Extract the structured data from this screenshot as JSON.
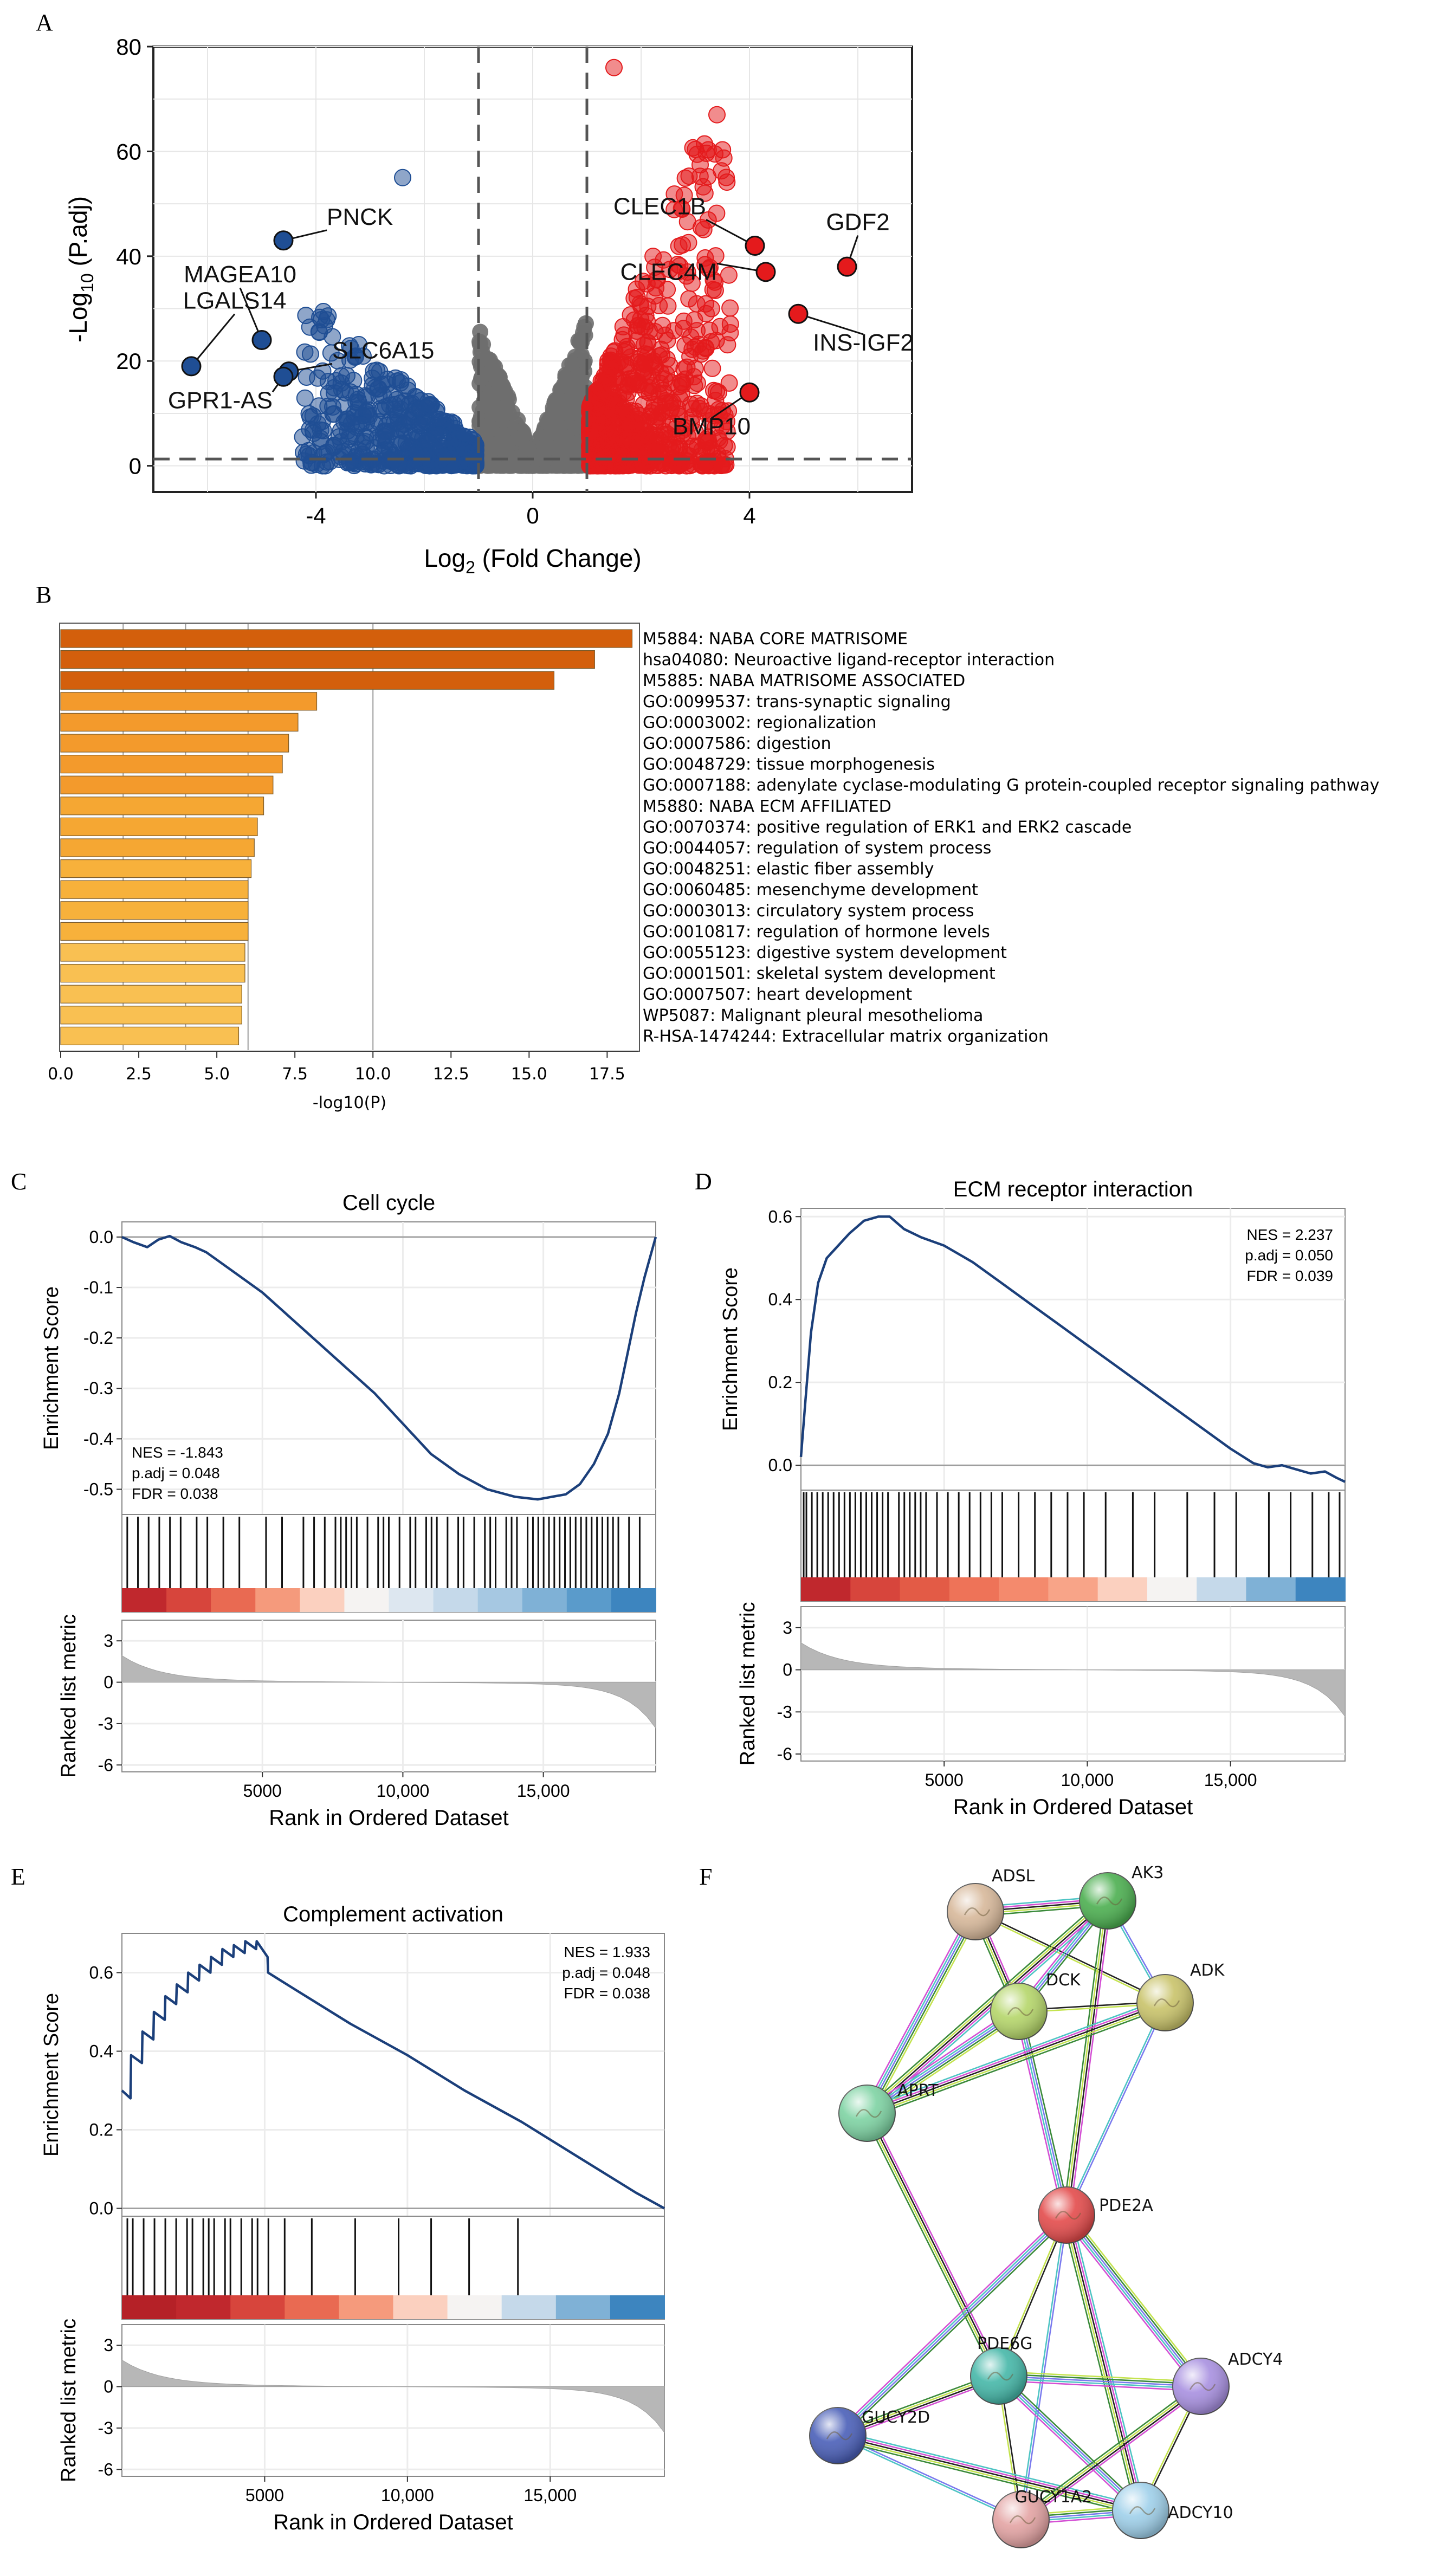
{
  "chart_data": [
    {
      "panel": "A",
      "type": "scatter",
      "xlabel": "Log",
      "xlabel_sub": "2",
      "xlabel_tail": " (Fold Change)",
      "ylabel": "-Log",
      "ylabel_sub": "10",
      "ylabel_tail": " (P.adj)",
      "xlim": [
        -7,
        7
      ],
      "ylim": [
        -5,
        80
      ],
      "xticks": [
        "-4",
        "0",
        "4"
      ],
      "xtick_values": [
        -4,
        0,
        4
      ],
      "yticks": [
        "0",
        "20",
        "40",
        "60",
        "80"
      ],
      "ytick_values": [
        0,
        20,
        40,
        60,
        80
      ],
      "thresholds": {
        "x": [
          -1,
          1
        ],
        "y": 1.3
      },
      "colors": {
        "down": "#1f4e94",
        "up": "#e41a1c",
        "ns": "#6e6e6e"
      },
      "labeled_genes": [
        {
          "gene": "PNCK",
          "x": -4.6,
          "y": 43,
          "group": "down"
        },
        {
          "gene": "MAGEA10",
          "x": -5.0,
          "y": 24,
          "group": "down"
        },
        {
          "gene": "LGALS14",
          "x": -6.3,
          "y": 19,
          "group": "down"
        },
        {
          "gene": "SLC6A15",
          "x": -4.5,
          "y": 18,
          "group": "down"
        },
        {
          "gene": "GPR1-AS",
          "x": -4.6,
          "y": 17,
          "group": "down"
        },
        {
          "gene": "CLEC1B",
          "x": 4.1,
          "y": 42,
          "group": "up"
        },
        {
          "gene": "GDF2",
          "x": 5.8,
          "y": 38,
          "group": "up"
        },
        {
          "gene": "CLEC4M",
          "x": 4.3,
          "y": 37,
          "group": "up"
        },
        {
          "gene": "INS-IGF2",
          "x": 4.9,
          "y": 29,
          "group": "up"
        },
        {
          "gene": "BMP10",
          "x": 4.0,
          "y": 14,
          "group": "up"
        }
      ],
      "notable_points": [
        {
          "x": -2.4,
          "y": 55,
          "group": "down"
        },
        {
          "x": 1.5,
          "y": 76,
          "group": "up"
        },
        {
          "x": 3.4,
          "y": 67,
          "group": "up"
        }
      ]
    },
    {
      "panel": "B",
      "type": "bar",
      "orientation": "horizontal",
      "xlabel": "-log10(P)",
      "xlim": [
        0,
        18.5
      ],
      "xticks": [
        "0.0",
        "2.5",
        "5.0",
        "7.5",
        "10.0",
        "12.5",
        "15.0",
        "17.5"
      ],
      "xtick_values": [
        0,
        2.5,
        5,
        7.5,
        10,
        12.5,
        15,
        17.5
      ],
      "gridlines": [
        2,
        4,
        6,
        10
      ],
      "categories": [
        "M5884: NABA CORE MATRISOME",
        "hsa04080: Neuroactive ligand-receptor interaction",
        "M5885: NABA MATRISOME ASSOCIATED",
        "GO:0099537: trans-synaptic signaling",
        "GO:0003002: regionalization",
        "GO:0007586: digestion",
        "GO:0048729: tissue morphogenesis",
        "GO:0007188: adenylate cyclase-modulating G protein-coupled receptor signaling pathway",
        "M5880: NABA ECM AFFILIATED",
        "GO:0070374: positive regulation of ERK1 and ERK2 cascade",
        "GO:0044057: regulation of system process",
        "GO:0048251: elastic fiber assembly",
        "GO:0060485: mesenchyme development",
        "GO:0003013: circulatory system process",
        "GO:0010817: regulation of hormone levels",
        "GO:0055123: digestive system development",
        "GO:0001501: skeletal system development",
        "GO:0007507: heart development",
        "WP5087: Malignant pleural mesothelioma",
        "R-HSA-1474244: Extracellular matrix organization"
      ],
      "values": [
        18.3,
        17.1,
        15.8,
        8.2,
        7.6,
        7.3,
        7.1,
        6.8,
        6.5,
        6.3,
        6.2,
        6.1,
        6.0,
        6.0,
        6.0,
        5.9,
        5.9,
        5.8,
        5.8,
        5.7
      ],
      "colors": [
        "#d35f0c",
        "#d35f0c",
        "#d35f0c",
        "#f39a2c",
        "#f39a2c",
        "#f39a2c",
        "#f39a2c",
        "#f39a2c",
        "#f5a733",
        "#f5a733",
        "#f5a733",
        "#f7b13b",
        "#f7b13b",
        "#f7b13b",
        "#f7b13b",
        "#f9c052",
        "#f9c052",
        "#f9c052",
        "#f9c052",
        "#f9c052"
      ]
    },
    {
      "panel": "C",
      "type": "line",
      "title": "Cell cycle",
      "ylabel": "Enrichment Score",
      "ylabel2": "Ranked list metric",
      "xlabel": "Rank in Ordered Dataset",
      "xlim": [
        0,
        19000
      ],
      "ylim": [
        -0.55,
        0.03
      ],
      "xticks": [
        "5000",
        "10,000",
        "15,000"
      ],
      "xtick_values": [
        5000,
        10000,
        15000
      ],
      "yticks": [
        "0.0",
        "-0.1",
        "-0.2",
        "-0.3",
        "-0.4",
        "-0.5"
      ],
      "ytick_values": [
        0,
        -0.1,
        -0.2,
        -0.3,
        -0.4,
        -0.5
      ],
      "metric_ticks": [
        "3",
        "0",
        "-3",
        "-6"
      ],
      "metric_values": [
        3,
        0,
        -3,
        -6
      ],
      "stats": [
        "NES = -1.843",
        "p.adj = 0.048",
        "FDR = 0.038"
      ],
      "curve": {
        "x": [
          0,
          400,
          900,
          1300,
          1700,
          2100,
          2600,
          3000,
          4000,
          5000,
          6000,
          7000,
          8000,
          9000,
          10000,
          11000,
          12000,
          13000,
          14000,
          14800,
          15300,
          15800,
          16300,
          16800,
          17300,
          17700,
          18000,
          18300,
          18600,
          18800,
          19000
        ],
        "y": [
          0,
          -0.01,
          -0.02,
          -0.005,
          0.002,
          -0.01,
          -0.02,
          -0.03,
          -0.07,
          -0.11,
          -0.16,
          -0.21,
          -0.26,
          -0.31,
          -0.37,
          -0.43,
          -0.47,
          -0.5,
          -0.515,
          -0.52,
          -0.515,
          -0.51,
          -0.49,
          -0.45,
          -0.39,
          -0.31,
          -0.23,
          -0.15,
          -0.08,
          -0.04,
          0.0
        ]
      },
      "hit_rank_fractions": [
        0.01,
        0.03,
        0.05,
        0.07,
        0.09,
        0.11,
        0.14,
        0.16,
        0.19,
        0.22,
        0.27,
        0.3,
        0.34,
        0.36,
        0.38,
        0.4,
        0.41,
        0.42,
        0.43,
        0.44,
        0.46,
        0.48,
        0.49,
        0.5,
        0.52,
        0.54,
        0.55,
        0.57,
        0.58,
        0.59,
        0.61,
        0.63,
        0.64,
        0.66,
        0.68,
        0.69,
        0.7,
        0.72,
        0.73,
        0.74,
        0.76,
        0.77,
        0.78,
        0.79,
        0.8,
        0.81,
        0.82,
        0.83,
        0.84,
        0.85,
        0.86,
        0.87,
        0.88,
        0.89,
        0.9,
        0.91,
        0.92,
        0.93,
        0.95,
        0.97
      ],
      "heat_colors": [
        "#c0282d",
        "#d7453c",
        "#e96a52",
        "#f59a7c",
        "#fbd0bf",
        "#f5f3f2",
        "#dde7f0",
        "#c5d9ea",
        "#a6c8e2",
        "#7fb1d6",
        "#5a9bcb",
        "#3d85bf"
      ]
    },
    {
      "panel": "D",
      "type": "line",
      "title": "ECM receptor interaction",
      "ylabel": "Enrichment Score",
      "ylabel2": "Ranked list metric",
      "xlabel": "Rank in Ordered Dataset",
      "xlim": [
        0,
        19000
      ],
      "ylim": [
        -0.06,
        0.62
      ],
      "xticks": [
        "5000",
        "10,000",
        "15,000"
      ],
      "xtick_values": [
        5000,
        10000,
        15000
      ],
      "yticks": [
        "0.6",
        "0.4",
        "0.2",
        "0.0"
      ],
      "ytick_values": [
        0.6,
        0.4,
        0.2,
        0
      ],
      "metric_ticks": [
        "3",
        "0",
        "-3",
        "-6"
      ],
      "metric_values": [
        3,
        0,
        -3,
        -6
      ],
      "stats": [
        "NES = 2.237",
        "p.adj = 0.050",
        "FDR = 0.039"
      ],
      "curve": {
        "x": [
          0,
          150,
          350,
          600,
          900,
          1300,
          1700,
          2200,
          2700,
          3100,
          3600,
          4200,
          5000,
          6000,
          7000,
          8000,
          9000,
          10000,
          11000,
          12000,
          13000,
          14000,
          15000,
          15800,
          16300,
          16800,
          17300,
          17800,
          18300,
          18700,
          19000
        ],
        "y": [
          0.02,
          0.15,
          0.32,
          0.44,
          0.5,
          0.53,
          0.56,
          0.59,
          0.6,
          0.6,
          0.57,
          0.55,
          0.53,
          0.49,
          0.44,
          0.39,
          0.34,
          0.29,
          0.24,
          0.19,
          0.14,
          0.09,
          0.04,
          0.005,
          -0.005,
          0.0,
          -0.01,
          -0.02,
          -0.015,
          -0.03,
          -0.04
        ]
      },
      "hit_rank_fractions": [
        0.005,
        0.01,
        0.02,
        0.03,
        0.04,
        0.05,
        0.06,
        0.07,
        0.08,
        0.09,
        0.1,
        0.11,
        0.12,
        0.13,
        0.14,
        0.15,
        0.16,
        0.18,
        0.19,
        0.2,
        0.21,
        0.22,
        0.23,
        0.25,
        0.27,
        0.29,
        0.31,
        0.33,
        0.35,
        0.37,
        0.4,
        0.43,
        0.46,
        0.49,
        0.52,
        0.56,
        0.61,
        0.65,
        0.71,
        0.76,
        0.8,
        0.86,
        0.9,
        0.94,
        0.97,
        0.99
      ],
      "heat_colors": [
        "#c0282d",
        "#d7453c",
        "#e35b46",
        "#ee7358",
        "#f48a6d",
        "#f8a488",
        "#fbd0bf",
        "#f5f3f2",
        "#c5d9ea",
        "#7fb1d6",
        "#3d85bf"
      ]
    },
    {
      "panel": "E",
      "type": "line",
      "title": "Complement activation",
      "ylabel": "Enrichment Score",
      "ylabel2": "Ranked list metric",
      "xlabel": "Rank in Ordered Dataset",
      "xlim": [
        0,
        19000
      ],
      "ylim": [
        -0.02,
        0.7
      ],
      "xticks": [
        "5000",
        "10,000",
        "15,000"
      ],
      "xtick_values": [
        5000,
        10000,
        15000
      ],
      "yticks": [
        "0.6",
        "0.4",
        "0.2",
        "0.0"
      ],
      "ytick_values": [
        0.6,
        0.4,
        0.2,
        0
      ],
      "metric_ticks": [
        "3",
        "0",
        "-3",
        "-6"
      ],
      "metric_values": [
        3,
        0,
        -3,
        -6
      ],
      "stats": [
        "NES = 1.933",
        "p.adj = 0.048",
        "FDR = 0.038"
      ],
      "curve": {
        "x": [
          0,
          300,
          320,
          700,
          720,
          1100,
          1120,
          1500,
          1520,
          1900,
          1920,
          2300,
          2320,
          2700,
          2720,
          3100,
          3120,
          3500,
          3520,
          3900,
          3920,
          4300,
          4320,
          4700,
          4720,
          5100,
          5120,
          6000,
          8000,
          10000,
          12000,
          14000,
          16000,
          18000,
          19000
        ],
        "y": [
          0.3,
          0.28,
          0.39,
          0.37,
          0.45,
          0.43,
          0.5,
          0.48,
          0.54,
          0.52,
          0.57,
          0.55,
          0.6,
          0.58,
          0.62,
          0.6,
          0.64,
          0.62,
          0.66,
          0.64,
          0.67,
          0.65,
          0.68,
          0.66,
          0.68,
          0.64,
          0.6,
          0.56,
          0.47,
          0.39,
          0.3,
          0.22,
          0.13,
          0.04,
          0.0
        ]
      },
      "hit_rank_fractions": [
        0.01,
        0.02,
        0.04,
        0.06,
        0.08,
        0.1,
        0.12,
        0.13,
        0.15,
        0.16,
        0.17,
        0.19,
        0.2,
        0.22,
        0.24,
        0.25,
        0.27,
        0.3,
        0.35,
        0.43,
        0.51,
        0.57,
        0.64,
        0.73
      ],
      "heat_colors": [
        "#b52127",
        "#c0282d",
        "#d7453c",
        "#e96a52",
        "#f59a7c",
        "#fbd0bf",
        "#f5f3f2",
        "#c5d9ea",
        "#7fb1d6",
        "#3d85bf"
      ]
    },
    {
      "panel": "F",
      "type": "network",
      "nodes": [
        {
          "id": "ADSL",
          "color": "#d7b89a"
        },
        {
          "id": "AK3",
          "color": "#4caf50"
        },
        {
          "id": "DCK",
          "color": "#b5d66a"
        },
        {
          "id": "ADK",
          "color": "#c9c36a"
        },
        {
          "id": "APRT",
          "color": "#7ed3a3"
        },
        {
          "id": "PDE2A",
          "color": "#e34b4b"
        },
        {
          "id": "PDE6G",
          "color": "#45b7a8"
        },
        {
          "id": "ADCY4",
          "color": "#a890e0"
        },
        {
          "id": "GUCY2D",
          "color": "#4a5fb8"
        },
        {
          "id": "GUCY1A2",
          "color": "#e3a3a3"
        },
        {
          "id": "ADCY10",
          "color": "#9fd0ea"
        }
      ],
      "edges": [
        [
          "ADSL",
          "AK3"
        ],
        [
          "ADSL",
          "DCK"
        ],
        [
          "ADSL",
          "ADK"
        ],
        [
          "ADSL",
          "APRT"
        ],
        [
          "AK3",
          "DCK"
        ],
        [
          "AK3",
          "ADK"
        ],
        [
          "AK3",
          "APRT"
        ],
        [
          "AK3",
          "PDE2A"
        ],
        [
          "DCK",
          "ADK"
        ],
        [
          "DCK",
          "APRT"
        ],
        [
          "DCK",
          "PDE2A"
        ],
        [
          "ADK",
          "PDE2A"
        ],
        [
          "APRT",
          "ADK"
        ],
        [
          "APRT",
          "PDE6G"
        ],
        [
          "PDE2A",
          "PDE6G"
        ],
        [
          "PDE2A",
          "ADCY4"
        ],
        [
          "PDE2A",
          "GUCY2D"
        ],
        [
          "PDE2A",
          "GUCY1A2"
        ],
        [
          "PDE2A",
          "ADCY10"
        ],
        [
          "PDE6G",
          "GUCY2D"
        ],
        [
          "PDE6G",
          "GUCY1A2"
        ],
        [
          "PDE6G",
          "ADCY4"
        ],
        [
          "PDE6G",
          "ADCY10"
        ],
        [
          "GUCY2D",
          "GUCY1A2"
        ],
        [
          "GUCY2D",
          "ADCY10"
        ],
        [
          "ADCY4",
          "GUCY1A2"
        ],
        [
          "ADCY4",
          "ADCY10"
        ],
        [
          "GUCY1A2",
          "ADCY10"
        ]
      ],
      "edge_colors": [
        "#4ec4c4",
        "#d44fd4",
        "#222222",
        "#c4e34e",
        "#3a8a3a",
        "#7a7aee"
      ]
    }
  ],
  "panel_letters": {
    "a": "A",
    "b": "B",
    "c": "C",
    "d": "D",
    "e": "E",
    "f": "F"
  }
}
